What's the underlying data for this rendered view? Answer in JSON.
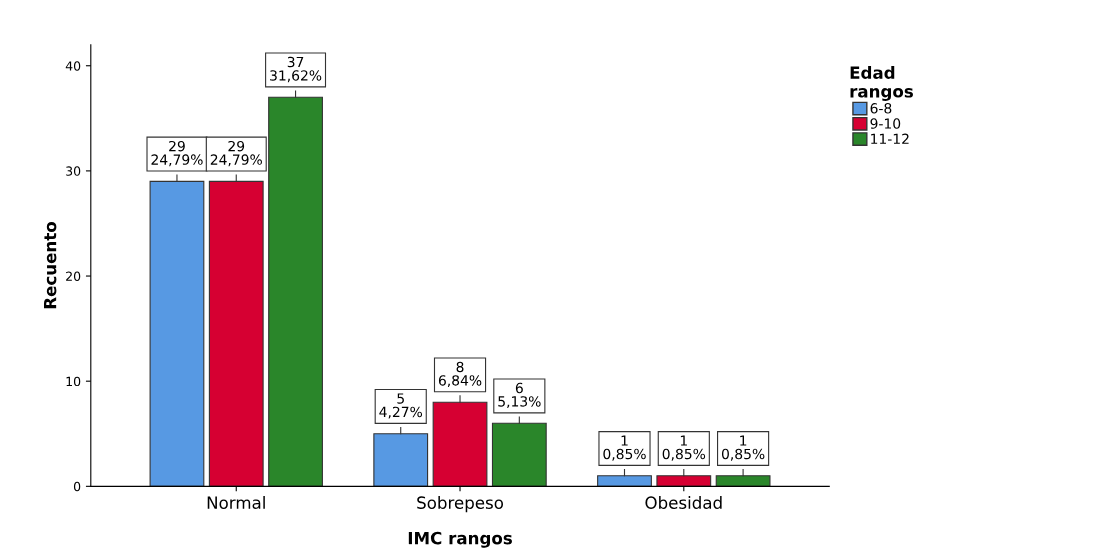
{
  "chart_data": {
    "type": "bar",
    "xlabel": "IMC rangos",
    "ylabel": "Recuento",
    "legend_title": "Edad\nrangos",
    "categories": [
      "Normal",
      "Sobrepeso",
      "Obesidad"
    ],
    "series": [
      {
        "name": "6-8",
        "color": "#5799e3",
        "values": [
          29,
          5,
          1
        ],
        "value_labels": [
          "29\n24,79%",
          "5\n4,27%",
          "1\n0,85%"
        ]
      },
      {
        "name": "9-10",
        "color": "#d60032",
        "values": [
          29,
          8,
          1
        ],
        "value_labels": [
          "29\n24,79%",
          "8\n6,84%",
          "1\n0,85%"
        ]
      },
      {
        "name": "11-12",
        "color": "#2a862a",
        "values": [
          37,
          6,
          1
        ],
        "value_labels": [
          "37\n31,62%",
          "6\n5,13%",
          "1\n0,85%"
        ]
      }
    ],
    "ylim": [
      0,
      42
    ],
    "yticks": [
      0,
      10,
      20,
      30,
      40
    ],
    "grid": false,
    "legend": "top right"
  }
}
